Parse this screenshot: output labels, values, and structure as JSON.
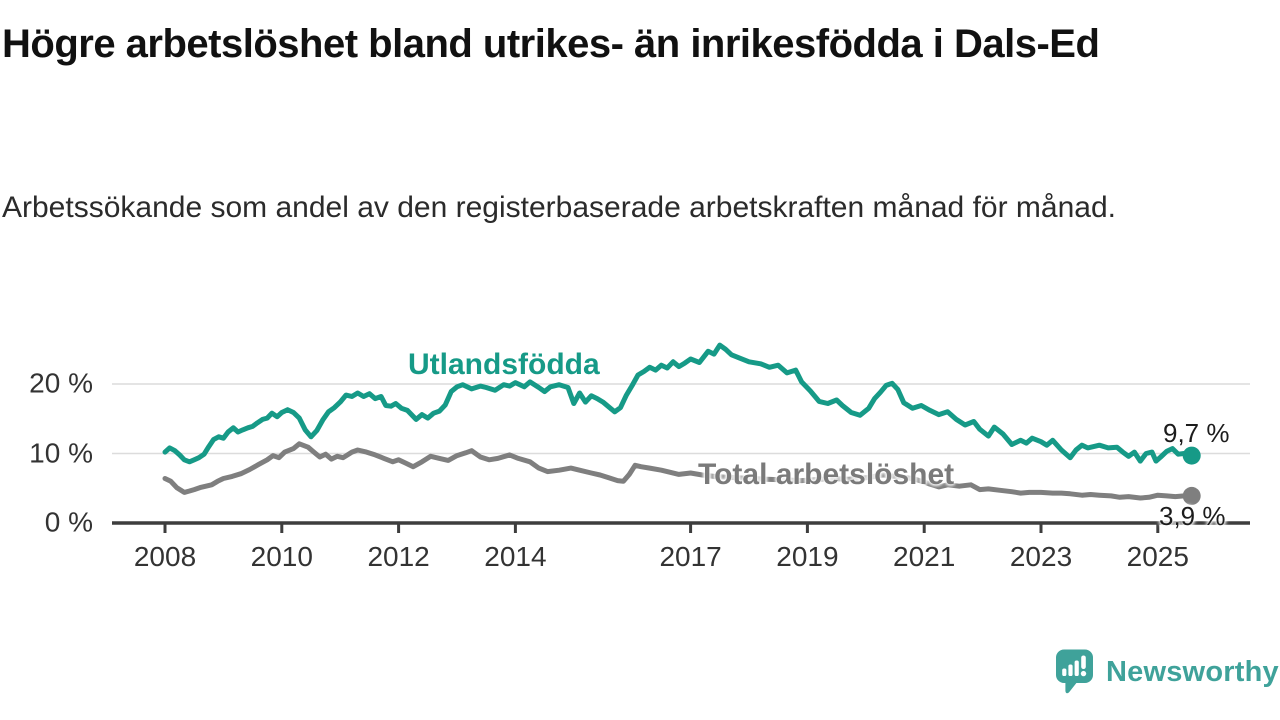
{
  "title": "Högre arbetslöshet bland utrikes- än inrikesfödda i Dals-Ed",
  "subtitle": "Arbetssökande som andel av den registerbaserade arbetskraften månad för månad.",
  "branding": {
    "wordmark": "Newsworthy",
    "icon": "newsworthy-speech-bubble-bar-chart-icon"
  },
  "colors": {
    "foreign_born_series": "#169a87",
    "total_series": "#7f7f7f",
    "grid": "#dcdcdc",
    "axis": "#3d3d3d",
    "axis_text": "#333333",
    "title_text": "#111111",
    "logo": "#3fa29a"
  },
  "chart_data": {
    "type": "line",
    "title": "Högre arbetslöshet bland utrikes- än inrikesfödda i Dals-Ed",
    "subtitle": "Arbetssökande som andel av den registerbaserade arbetskraften månad för månad.",
    "unit": "%",
    "grid": "horizontal",
    "x_axis": {
      "tick_years": [
        2008,
        2010,
        2012,
        2014,
        2017,
        2019,
        2021,
        2023,
        2025
      ],
      "tick_labels": [
        "2008",
        "2010",
        "2012",
        "2014",
        "2017",
        "2019",
        "2021",
        "2023",
        "2025"
      ],
      "range_years": [
        2008,
        2025.6
      ]
    },
    "y_axis": {
      "ticks": [
        0,
        10,
        20
      ],
      "tick_labels": [
        "0 %",
        "10 %",
        "20 %"
      ],
      "gridline_values": [
        10,
        20
      ],
      "range": [
        0,
        26
      ]
    },
    "series": [
      {
        "name": "Utlandsfödda",
        "color": "#169a87",
        "end_value": 9.7,
        "end_value_label": "9,7 %",
        "points": [
          [
            2008.0,
            10.2
          ],
          [
            2008.08,
            10.8
          ],
          [
            2008.17,
            10.4
          ],
          [
            2008.25,
            9.8
          ],
          [
            2008.33,
            9.1
          ],
          [
            2008.42,
            8.8
          ],
          [
            2008.5,
            9.1
          ],
          [
            2008.58,
            9.4
          ],
          [
            2008.67,
            9.9
          ],
          [
            2008.75,
            11.0
          ],
          [
            2008.83,
            12.0
          ],
          [
            2008.92,
            12.4
          ],
          [
            2009.0,
            12.2
          ],
          [
            2009.08,
            13.1
          ],
          [
            2009.17,
            13.7
          ],
          [
            2009.25,
            13.1
          ],
          [
            2009.33,
            13.4
          ],
          [
            2009.42,
            13.7
          ],
          [
            2009.5,
            13.9
          ],
          [
            2009.58,
            14.4
          ],
          [
            2009.67,
            14.9
          ],
          [
            2009.75,
            15.1
          ],
          [
            2009.83,
            15.8
          ],
          [
            2009.92,
            15.3
          ],
          [
            2010.0,
            15.9
          ],
          [
            2010.1,
            16.3
          ],
          [
            2010.2,
            15.9
          ],
          [
            2010.3,
            15.1
          ],
          [
            2010.4,
            13.4
          ],
          [
            2010.5,
            12.4
          ],
          [
            2010.6,
            13.3
          ],
          [
            2010.7,
            14.8
          ],
          [
            2010.8,
            16.0
          ],
          [
            2010.9,
            16.6
          ],
          [
            2011.0,
            17.4
          ],
          [
            2011.1,
            18.4
          ],
          [
            2011.2,
            18.2
          ],
          [
            2011.3,
            18.7
          ],
          [
            2011.4,
            18.2
          ],
          [
            2011.5,
            18.6
          ],
          [
            2011.6,
            17.9
          ],
          [
            2011.7,
            18.2
          ],
          [
            2011.78,
            16.9
          ],
          [
            2011.87,
            16.8
          ],
          [
            2011.95,
            17.2
          ],
          [
            2012.05,
            16.5
          ],
          [
            2012.15,
            16.2
          ],
          [
            2012.3,
            14.9
          ],
          [
            2012.4,
            15.6
          ],
          [
            2012.5,
            15.1
          ],
          [
            2012.6,
            15.8
          ],
          [
            2012.7,
            16.1
          ],
          [
            2012.8,
            17.0
          ],
          [
            2012.9,
            18.9
          ],
          [
            2013.0,
            19.6
          ],
          [
            2013.1,
            19.9
          ],
          [
            2013.25,
            19.3
          ],
          [
            2013.4,
            19.7
          ],
          [
            2013.5,
            19.5
          ],
          [
            2013.65,
            19.1
          ],
          [
            2013.8,
            19.9
          ],
          [
            2013.9,
            19.7
          ],
          [
            2014.0,
            20.2
          ],
          [
            2014.15,
            19.6
          ],
          [
            2014.25,
            20.3
          ],
          [
            2014.4,
            19.5
          ],
          [
            2014.5,
            18.9
          ],
          [
            2014.6,
            19.6
          ],
          [
            2014.75,
            19.9
          ],
          [
            2014.9,
            19.5
          ],
          [
            2015.0,
            17.2
          ],
          [
            2015.1,
            18.7
          ],
          [
            2015.2,
            17.4
          ],
          [
            2015.3,
            18.3
          ],
          [
            2015.4,
            17.9
          ],
          [
            2015.5,
            17.4
          ],
          [
            2015.6,
            16.7
          ],
          [
            2015.7,
            16.0
          ],
          [
            2015.8,
            16.6
          ],
          [
            2015.9,
            18.4
          ],
          [
            2016.0,
            19.8
          ],
          [
            2016.1,
            21.3
          ],
          [
            2016.2,
            21.8
          ],
          [
            2016.3,
            22.4
          ],
          [
            2016.4,
            22.0
          ],
          [
            2016.5,
            22.7
          ],
          [
            2016.6,
            22.3
          ],
          [
            2016.7,
            23.2
          ],
          [
            2016.8,
            22.5
          ],
          [
            2016.9,
            23.0
          ],
          [
            2017.0,
            23.6
          ],
          [
            2017.15,
            23.1
          ],
          [
            2017.3,
            24.7
          ],
          [
            2017.4,
            24.3
          ],
          [
            2017.5,
            25.6
          ],
          [
            2017.6,
            25.0
          ],
          [
            2017.7,
            24.2
          ],
          [
            2017.85,
            23.7
          ],
          [
            2018.0,
            23.2
          ],
          [
            2018.2,
            22.9
          ],
          [
            2018.35,
            22.4
          ],
          [
            2018.5,
            22.7
          ],
          [
            2018.65,
            21.6
          ],
          [
            2018.8,
            22.0
          ],
          [
            2018.9,
            20.3
          ],
          [
            2019.05,
            19.0
          ],
          [
            2019.2,
            17.5
          ],
          [
            2019.35,
            17.2
          ],
          [
            2019.5,
            17.7
          ],
          [
            2019.6,
            16.9
          ],
          [
            2019.75,
            15.9
          ],
          [
            2019.9,
            15.5
          ],
          [
            2020.05,
            16.5
          ],
          [
            2020.15,
            17.9
          ],
          [
            2020.25,
            18.8
          ],
          [
            2020.35,
            19.8
          ],
          [
            2020.45,
            20.1
          ],
          [
            2020.55,
            19.2
          ],
          [
            2020.65,
            17.3
          ],
          [
            2020.8,
            16.5
          ],
          [
            2020.95,
            16.9
          ],
          [
            2021.1,
            16.2
          ],
          [
            2021.25,
            15.6
          ],
          [
            2021.4,
            16.0
          ],
          [
            2021.55,
            14.9
          ],
          [
            2021.7,
            14.1
          ],
          [
            2021.85,
            14.6
          ],
          [
            2021.95,
            13.5
          ],
          [
            2022.1,
            12.5
          ],
          [
            2022.2,
            13.8
          ],
          [
            2022.35,
            12.8
          ],
          [
            2022.5,
            11.3
          ],
          [
            2022.65,
            11.9
          ],
          [
            2022.75,
            11.5
          ],
          [
            2022.85,
            12.2
          ],
          [
            2023.0,
            11.7
          ],
          [
            2023.1,
            11.2
          ],
          [
            2023.2,
            11.9
          ],
          [
            2023.35,
            10.5
          ],
          [
            2023.5,
            9.4
          ],
          [
            2023.6,
            10.5
          ],
          [
            2023.7,
            11.2
          ],
          [
            2023.8,
            10.8
          ],
          [
            2023.9,
            11.0
          ],
          [
            2024.0,
            11.2
          ],
          [
            2024.15,
            10.8
          ],
          [
            2024.3,
            10.9
          ],
          [
            2024.4,
            10.2
          ],
          [
            2024.5,
            9.6
          ],
          [
            2024.6,
            10.2
          ],
          [
            2024.7,
            8.9
          ],
          [
            2024.8,
            10.0
          ],
          [
            2024.9,
            10.2
          ],
          [
            2024.97,
            8.9
          ],
          [
            2025.05,
            9.5
          ],
          [
            2025.15,
            10.3
          ],
          [
            2025.25,
            10.7
          ],
          [
            2025.35,
            9.9
          ],
          [
            2025.45,
            10.0
          ],
          [
            2025.58,
            9.7
          ]
        ]
      },
      {
        "name": "Total arbetslöshet",
        "color": "#7f7f7f",
        "end_value": 3.9,
        "end_value_label": "3,9 %",
        "points": [
          [
            2008.0,
            6.4
          ],
          [
            2008.1,
            6.0
          ],
          [
            2008.2,
            5.1
          ],
          [
            2008.33,
            4.4
          ],
          [
            2008.42,
            4.6
          ],
          [
            2008.5,
            4.8
          ],
          [
            2008.6,
            5.1
          ],
          [
            2008.7,
            5.3
          ],
          [
            2008.8,
            5.5
          ],
          [
            2008.9,
            6.0
          ],
          [
            2009.0,
            6.4
          ],
          [
            2009.15,
            6.7
          ],
          [
            2009.3,
            7.1
          ],
          [
            2009.45,
            7.7
          ],
          [
            2009.6,
            8.4
          ],
          [
            2009.75,
            9.1
          ],
          [
            2009.85,
            9.7
          ],
          [
            2009.95,
            9.4
          ],
          [
            2010.05,
            10.2
          ],
          [
            2010.2,
            10.7
          ],
          [
            2010.3,
            11.4
          ],
          [
            2010.45,
            10.9
          ],
          [
            2010.55,
            10.2
          ],
          [
            2010.65,
            9.5
          ],
          [
            2010.75,
            9.9
          ],
          [
            2010.85,
            9.2
          ],
          [
            2010.95,
            9.6
          ],
          [
            2011.05,
            9.4
          ],
          [
            2011.2,
            10.2
          ],
          [
            2011.3,
            10.5
          ],
          [
            2011.45,
            10.2
          ],
          [
            2011.6,
            9.8
          ],
          [
            2011.75,
            9.3
          ],
          [
            2011.9,
            8.8
          ],
          [
            2012.0,
            9.1
          ],
          [
            2012.1,
            8.7
          ],
          [
            2012.25,
            8.1
          ],
          [
            2012.4,
            8.8
          ],
          [
            2012.55,
            9.6
          ],
          [
            2012.7,
            9.3
          ],
          [
            2012.85,
            9.0
          ],
          [
            2013.0,
            9.7
          ],
          [
            2013.15,
            10.1
          ],
          [
            2013.25,
            10.4
          ],
          [
            2013.4,
            9.5
          ],
          [
            2013.55,
            9.1
          ],
          [
            2013.7,
            9.3
          ],
          [
            2013.9,
            9.8
          ],
          [
            2014.05,
            9.3
          ],
          [
            2014.25,
            8.8
          ],
          [
            2014.4,
            7.9
          ],
          [
            2014.55,
            7.4
          ],
          [
            2014.75,
            7.6
          ],
          [
            2014.95,
            7.9
          ],
          [
            2015.1,
            7.6
          ],
          [
            2015.3,
            7.2
          ],
          [
            2015.45,
            6.9
          ],
          [
            2015.6,
            6.5
          ],
          [
            2015.75,
            6.1
          ],
          [
            2015.85,
            6.0
          ],
          [
            2015.95,
            7.0
          ],
          [
            2016.05,
            8.3
          ],
          [
            2016.15,
            8.1
          ],
          [
            2016.3,
            7.9
          ],
          [
            2016.5,
            7.6
          ],
          [
            2016.65,
            7.3
          ],
          [
            2016.8,
            7.0
          ],
          [
            2017.0,
            7.2
          ],
          [
            2017.2,
            6.9
          ],
          [
            2017.4,
            6.7
          ],
          [
            2017.6,
            6.6
          ],
          [
            2017.8,
            6.5
          ],
          [
            2018.0,
            6.4
          ],
          [
            2018.3,
            6.3
          ],
          [
            2018.6,
            6.2
          ],
          [
            2018.9,
            6.1
          ],
          [
            2019.1,
            6.2
          ],
          [
            2019.4,
            6.4
          ],
          [
            2019.7,
            6.3
          ],
          [
            2020.0,
            6.5
          ],
          [
            2020.3,
            6.9
          ],
          [
            2020.5,
            6.7
          ],
          [
            2020.8,
            6.4
          ],
          [
            2021.0,
            5.9
          ],
          [
            2021.1,
            5.6
          ],
          [
            2021.25,
            5.2
          ],
          [
            2021.4,
            5.5
          ],
          [
            2021.6,
            5.3
          ],
          [
            2021.8,
            5.5
          ],
          [
            2021.95,
            4.8
          ],
          [
            2022.1,
            4.9
          ],
          [
            2022.3,
            4.7
          ],
          [
            2022.5,
            4.5
          ],
          [
            2022.65,
            4.3
          ],
          [
            2022.8,
            4.4
          ],
          [
            2023.0,
            4.4
          ],
          [
            2023.2,
            4.3
          ],
          [
            2023.35,
            4.3
          ],
          [
            2023.5,
            4.2
          ],
          [
            2023.7,
            4.0
          ],
          [
            2023.85,
            4.1
          ],
          [
            2024.0,
            4.0
          ],
          [
            2024.2,
            3.9
          ],
          [
            2024.35,
            3.7
          ],
          [
            2024.5,
            3.8
          ],
          [
            2024.7,
            3.6
          ],
          [
            2024.85,
            3.7
          ],
          [
            2025.0,
            4.0
          ],
          [
            2025.15,
            3.9
          ],
          [
            2025.3,
            3.8
          ],
          [
            2025.45,
            3.9
          ],
          [
            2025.58,
            3.9
          ]
        ]
      }
    ]
  }
}
